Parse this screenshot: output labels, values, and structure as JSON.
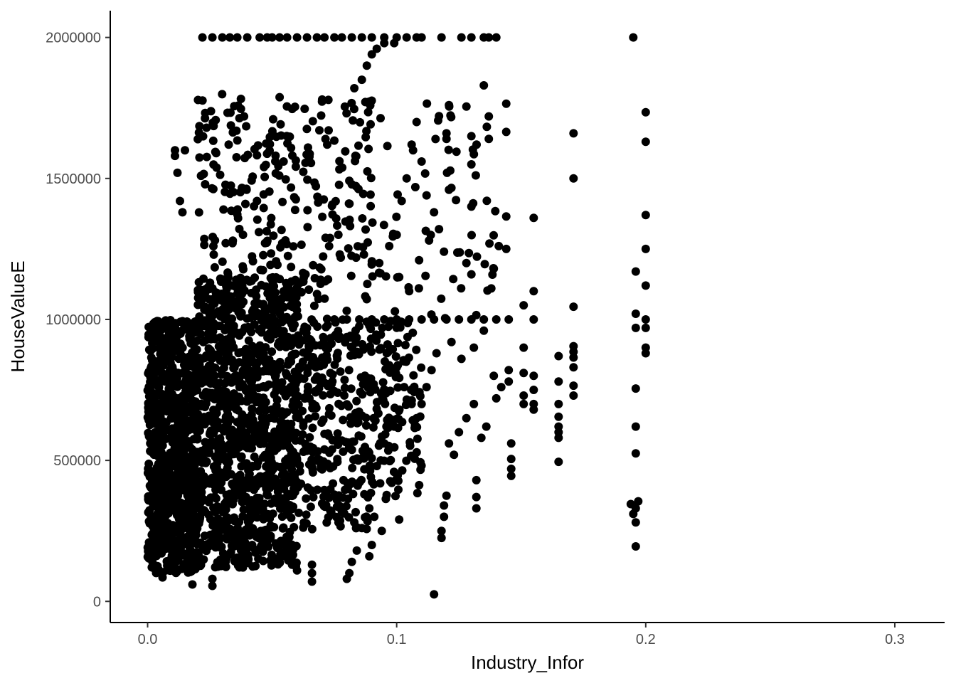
{
  "chart_data": {
    "type": "scatter",
    "xlabel": "Industry_Infor",
    "ylabel": "HouseValueE",
    "xlim": [
      -0.015,
      0.32
    ],
    "ylim": [
      -75000,
      2095000
    ],
    "x_ticks": [
      0.0,
      0.1,
      0.2,
      0.3
    ],
    "x_tick_labels": [
      "0.0",
      "0.1",
      "0.2",
      "0.3"
    ],
    "y_ticks": [
      0,
      500000,
      1000000,
      1500000,
      2000000
    ],
    "y_tick_labels": [
      "0",
      "500000",
      "1000000",
      "1500000",
      "2000000"
    ],
    "grid": false,
    "legend": "none",
    "point_color": "#000000",
    "dense_clusters": [
      {
        "x_range": [
          0.0,
          0.02
        ],
        "y_range": [
          100000,
          1000000
        ],
        "count": 900
      },
      {
        "x_range": [
          0.02,
          0.06
        ],
        "y_range": [
          120000,
          1150000
        ],
        "count": 1100
      },
      {
        "x_range": [
          0.06,
          0.09
        ],
        "y_range": [
          250000,
          1000000
        ],
        "count": 300
      },
      {
        "x_range": [
          0.09,
          0.11
        ],
        "y_range": [
          350000,
          1000000
        ],
        "count": 120
      },
      {
        "x_range": [
          0.02,
          0.09
        ],
        "y_range": [
          1000000,
          1800000
        ],
        "count": 300
      },
      {
        "x_range": [
          0.09,
          0.14
        ],
        "y_range": [
          1000000,
          1770000
        ],
        "count": 60
      }
    ],
    "cap_2000000_x": [
      0.022,
      0.026,
      0.03,
      0.033,
      0.036,
      0.04,
      0.045,
      0.048,
      0.05,
      0.053,
      0.056,
      0.06,
      0.064,
      0.068,
      0.071,
      0.075,
      0.078,
      0.082,
      0.086,
      0.09,
      0.095,
      0.1,
      0.104,
      0.108,
      0.11,
      0.118,
      0.126,
      0.13,
      0.135,
      0.137,
      0.14,
      0.195
    ],
    "cap_1000000_x": [
      0.075,
      0.08,
      0.085,
      0.09,
      0.095,
      0.1,
      0.105,
      0.11,
      0.115,
      0.12,
      0.125,
      0.13,
      0.135,
      0.14
    ],
    "points": [
      [
        0.115,
        25000
      ],
      [
        0.196,
        195000
      ],
      [
        0.196,
        280000
      ],
      [
        0.195,
        310000
      ],
      [
        0.196,
        330000
      ],
      [
        0.194,
        345000
      ],
      [
        0.197,
        355000
      ],
      [
        0.196,
        525000
      ],
      [
        0.196,
        620000
      ],
      [
        0.196,
        755000
      ],
      [
        0.196,
        970000
      ],
      [
        0.196,
        1020000
      ],
      [
        0.196,
        1170000
      ],
      [
        0.2,
        880000
      ],
      [
        0.2,
        900000
      ],
      [
        0.2,
        970000
      ],
      [
        0.2,
        1000000
      ],
      [
        0.2,
        1120000
      ],
      [
        0.2,
        1250000
      ],
      [
        0.2,
        1370000
      ],
      [
        0.2,
        1630000
      ],
      [
        0.2,
        1735000
      ],
      [
        0.171,
        730000
      ],
      [
        0.171,
        765000
      ],
      [
        0.171,
        830000
      ],
      [
        0.171,
        865000
      ],
      [
        0.171,
        885000
      ],
      [
        0.171,
        905000
      ],
      [
        0.171,
        1045000
      ],
      [
        0.171,
        1500000
      ],
      [
        0.171,
        1660000
      ],
      [
        0.165,
        495000
      ],
      [
        0.165,
        580000
      ],
      [
        0.165,
        600000
      ],
      [
        0.165,
        620000
      ],
      [
        0.165,
        655000
      ],
      [
        0.165,
        700000
      ],
      [
        0.165,
        780000
      ],
      [
        0.165,
        870000
      ],
      [
        0.155,
        680000
      ],
      [
        0.155,
        700000
      ],
      [
        0.155,
        750000
      ],
      [
        0.155,
        800000
      ],
      [
        0.155,
        1000000
      ],
      [
        0.155,
        1100000
      ],
      [
        0.155,
        1360000
      ],
      [
        0.151,
        700000
      ],
      [
        0.151,
        730000
      ],
      [
        0.151,
        810000
      ],
      [
        0.151,
        900000
      ],
      [
        0.151,
        1050000
      ],
      [
        0.146,
        445000
      ],
      [
        0.146,
        470000
      ],
      [
        0.146,
        505000
      ],
      [
        0.146,
        560000
      ],
      [
        0.145,
        780000
      ],
      [
        0.145,
        820000
      ],
      [
        0.145,
        1000000
      ],
      [
        0.144,
        1250000
      ],
      [
        0.144,
        1365000
      ],
      [
        0.144,
        1665000
      ],
      [
        0.144,
        1765000
      ],
      [
        0.132,
        330000
      ],
      [
        0.132,
        370000
      ],
      [
        0.132,
        430000
      ],
      [
        0.13,
        1400000
      ],
      [
        0.13,
        1550000
      ],
      [
        0.13,
        1650000
      ],
      [
        0.128,
        1755000
      ],
      [
        0.137,
        1640000
      ],
      [
        0.137,
        1720000
      ],
      [
        0.135,
        1830000
      ],
      [
        0.128,
        1200000
      ],
      [
        0.129,
        1235000
      ],
      [
        0.13,
        1160000
      ],
      [
        0.138,
        1110000
      ],
      [
        0.139,
        1180000
      ],
      [
        0.141,
        1260000
      ],
      [
        0.118,
        225000
      ],
      [
        0.118,
        250000
      ],
      [
        0.119,
        300000
      ],
      [
        0.119,
        340000
      ],
      [
        0.12,
        375000
      ],
      [
        0.121,
        1460000
      ],
      [
        0.12,
        1640000
      ],
      [
        0.12,
        1660000
      ],
      [
        0.121,
        1760000
      ],
      [
        0.108,
        650000
      ],
      [
        0.11,
        700000
      ],
      [
        0.112,
        760000
      ],
      [
        0.114,
        820000
      ],
      [
        0.116,
        880000
      ],
      [
        0.122,
        920000
      ],
      [
        0.126,
        860000
      ],
      [
        0.131,
        900000
      ],
      [
        0.135,
        960000
      ],
      [
        0.139,
        800000
      ],
      [
        0.125,
        600000
      ],
      [
        0.128,
        650000
      ],
      [
        0.131,
        700000
      ],
      [
        0.134,
        580000
      ],
      [
        0.136,
        620000
      ],
      [
        0.14,
        720000
      ],
      [
        0.142,
        760000
      ],
      [
        0.123,
        520000
      ],
      [
        0.121,
        560000
      ],
      [
        0.1,
        1300000
      ],
      [
        0.102,
        1420000
      ],
      [
        0.104,
        1500000
      ],
      [
        0.106,
        1620000
      ],
      [
        0.108,
        1700000
      ],
      [
        0.11,
        1560000
      ],
      [
        0.112,
        1440000
      ],
      [
        0.115,
        1380000
      ],
      [
        0.093,
        1200000
      ],
      [
        0.097,
        1260000
      ],
      [
        0.101,
        1150000
      ],
      [
        0.105,
        1100000
      ],
      [
        0.109,
        1210000
      ],
      [
        0.113,
        1280000
      ],
      [
        0.117,
        1320000
      ],
      [
        0.119,
        1240000
      ],
      [
        0.096,
        880000
      ],
      [
        0.1,
        830000
      ],
      [
        0.103,
        760000
      ],
      [
        0.106,
        700000
      ],
      [
        0.099,
        620000
      ],
      [
        0.095,
        560000
      ],
      [
        0.092,
        480000
      ],
      [
        0.098,
        420000
      ],
      [
        0.087,
        380000
      ],
      [
        0.089,
        330000
      ],
      [
        0.091,
        300000
      ],
      [
        0.094,
        250000
      ],
      [
        0.084,
        180000
      ],
      [
        0.082,
        140000
      ],
      [
        0.081,
        100000
      ],
      [
        0.08,
        80000
      ],
      [
        0.09,
        200000
      ],
      [
        0.089,
        160000
      ],
      [
        0.101,
        290000
      ],
      [
        0.086,
        260000
      ],
      [
        0.083,
        280000
      ],
      [
        0.078,
        320000
      ],
      [
        0.076,
        360000
      ],
      [
        0.086,
        1850000
      ],
      [
        0.088,
        1900000
      ],
      [
        0.09,
        1940000
      ],
      [
        0.092,
        1960000
      ],
      [
        0.083,
        1820000
      ],
      [
        0.095,
        1980000
      ],
      [
        0.099,
        1980000
      ],
      [
        0.066,
        70000
      ],
      [
        0.066,
        100000
      ],
      [
        0.066,
        130000
      ],
      [
        0.058,
        130000
      ],
      [
        0.06,
        110000
      ],
      [
        0.026,
        55000
      ],
      [
        0.026,
        80000
      ],
      [
        0.018,
        60000
      ],
      [
        0.006,
        85000
      ],
      [
        0.012,
        1520000
      ],
      [
        0.011,
        1580000
      ],
      [
        0.011,
        1600000
      ],
      [
        0.015,
        1600000
      ],
      [
        0.013,
        1420000
      ],
      [
        0.014,
        1380000
      ]
    ]
  }
}
